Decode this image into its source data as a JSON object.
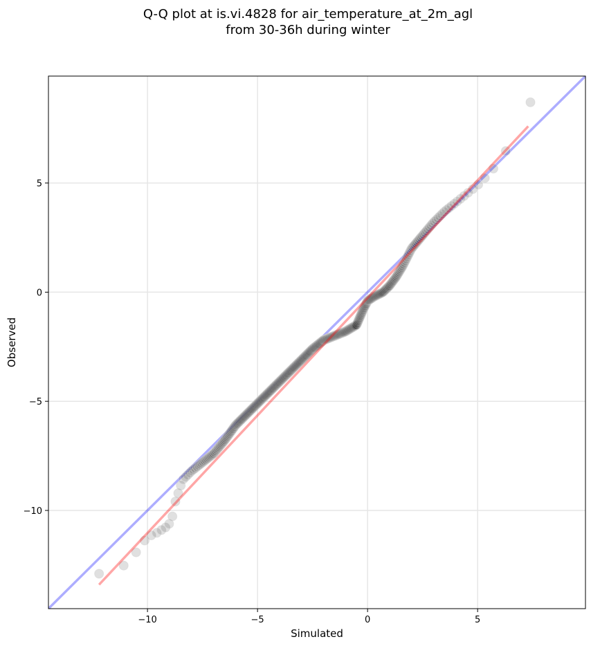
{
  "chart_data": {
    "type": "scatter",
    "title": [
      "Q-Q plot at is.vi.4828 for air_temperature_at_2m_agl",
      "from 30-36h during winter"
    ],
    "xlabel": "Simulated",
    "ylabel": "Observed",
    "xlim": [
      -14.5,
      9.9
    ],
    "ylim": [
      -14.5,
      9.9
    ],
    "x_ticks": [
      {
        "value": -10,
        "label": "−10"
      },
      {
        "value": -5,
        "label": "−5"
      },
      {
        "value": 0,
        "label": "0"
      },
      {
        "value": 5,
        "label": "5"
      }
    ],
    "y_ticks": [
      {
        "value": 5,
        "label": "5"
      },
      {
        "value": 0,
        "label": "0"
      },
      {
        "value": -5,
        "label": "−5"
      },
      {
        "value": -10,
        "label": "−10"
      }
    ],
    "grid": true,
    "reference_line": {
      "color": "#0000ff",
      "from": [
        -14.5,
        -14.5
      ],
      "to": [
        9.9,
        9.9
      ]
    },
    "fit_line": {
      "color": "#ff0000",
      "from": [
        -12.2,
        -13.4
      ],
      "to": [
        7.3,
        7.6
      ]
    },
    "points_outer_color": "#cfcfcf",
    "points_inner_color": "#000000",
    "points_x_range": [
      -12.2,
      7.4
    ],
    "quantile_curve": [
      [
        -12.2,
        -12.9
      ],
      [
        -11.0,
        -12.5
      ],
      [
        -10.5,
        -11.9
      ],
      [
        -10.0,
        -11.2
      ],
      [
        -9.7,
        -11.1
      ],
      [
        -9.2,
        -10.8
      ],
      [
        -8.9,
        -10.5
      ],
      [
        -8.8,
        -9.8
      ],
      [
        -8.6,
        -9.2
      ],
      [
        -8.4,
        -8.6
      ],
      [
        -8.0,
        -8.2
      ],
      [
        -7.5,
        -7.8
      ],
      [
        -7.0,
        -7.4
      ],
      [
        -6.5,
        -6.8
      ],
      [
        -6.0,
        -6.1
      ],
      [
        -5.5,
        -5.6
      ],
      [
        -5.0,
        -5.1
      ],
      [
        -4.5,
        -4.6
      ],
      [
        -4.0,
        -4.1
      ],
      [
        -3.5,
        -3.6
      ],
      [
        -3.0,
        -3.1
      ],
      [
        -2.5,
        -2.6
      ],
      [
        -2.0,
        -2.2
      ],
      [
        -1.5,
        -2.0
      ],
      [
        -1.0,
        -1.8
      ],
      [
        -0.5,
        -1.5
      ],
      [
        -0.2,
        -0.8
      ],
      [
        0.0,
        -0.4
      ],
      [
        0.3,
        -0.2
      ],
      [
        0.7,
        0.0
      ],
      [
        1.0,
        0.3
      ],
      [
        1.3,
        0.7
      ],
      [
        1.6,
        1.2
      ],
      [
        2.0,
        2.0
      ],
      [
        2.5,
        2.6
      ],
      [
        3.0,
        3.2
      ],
      [
        3.5,
        3.7
      ],
      [
        4.0,
        4.1
      ],
      [
        4.5,
        4.5
      ],
      [
        5.0,
        4.9
      ],
      [
        5.5,
        5.4
      ],
      [
        6.0,
        6.0
      ],
      [
        6.3,
        6.5
      ],
      [
        6.6,
        7.0
      ],
      [
        7.0,
        7.8
      ],
      [
        7.4,
        8.7
      ]
    ]
  }
}
